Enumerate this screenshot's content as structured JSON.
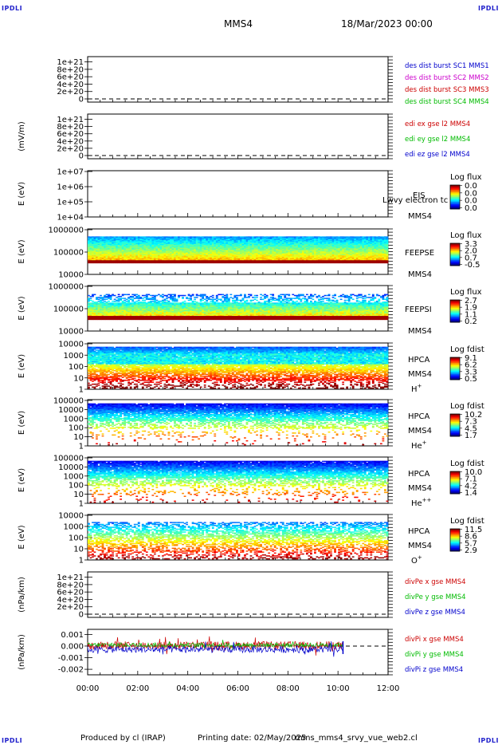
{
  "header": {
    "title": "MMS4",
    "date": "18/Mar/2023 00:00",
    "corner_label": "IPDLI"
  },
  "footer": {
    "produced": "Produced by cl (IRAP)",
    "printing": "Printing date: 02/May/2025",
    "script": "mms_mms4_srvy_vue_web2.cl"
  },
  "x_axis": {
    "ticks": [
      "00:00",
      "02:00",
      "04:00",
      "06:00",
      "08:00",
      "10:00",
      "12:00"
    ],
    "hours_range": [
      0,
      12
    ]
  },
  "chart_data": [
    {
      "id": "des",
      "type": "line",
      "ylabel": "",
      "yticks": [
        "0",
        "2e+20",
        "4e+20",
        "6e+20",
        "8e+20",
        "1e+21"
      ],
      "ylim": [
        0,
        1.1e+21
      ],
      "dashed_zero": true,
      "legend": [
        {
          "text": "des dist burst SC1 MMS1",
          "color": "#0000cc"
        },
        {
          "text": "des dist burst SC2 MMS2",
          "color": "#cc00cc"
        },
        {
          "text": "des dist burst SC3 MMS3",
          "color": "#cc0000"
        },
        {
          "text": "des dist burst SC4 MMS4",
          "color": "#00bb00"
        }
      ]
    },
    {
      "id": "edi",
      "type": "line",
      "ylabel": "(mV/m)",
      "yticks": [
        "0",
        "2e+20",
        "4e+20",
        "6e+20",
        "8e+20",
        "1e+21"
      ],
      "ylim": [
        0,
        1.1e+21
      ],
      "dashed_zero": true,
      "legend": [
        {
          "text": "edi ex gse l2 MMS4",
          "color": "#cc0000"
        },
        {
          "text": "edi ey gse l2 MMS4",
          "color": "#00bb00"
        },
        {
          "text": "edi ez gse l2 MMS4",
          "color": "#0000cc"
        }
      ]
    },
    {
      "id": "eis",
      "type": "heatmap",
      "ylabel": "E (eV)",
      "yscale": "log",
      "yticks": [
        "1e+04",
        "1e+05",
        "1e+06",
        "1e+07"
      ],
      "instrument": [
        "EIS",
        "MMS4"
      ],
      "overlay": "Lwvy electron tc",
      "colorbar": {
        "title": "Log flux",
        "ticks": [
          "0.0",
          "0.0",
          "0.0",
          "0.0"
        ]
      }
    },
    {
      "id": "feepse",
      "type": "heatmap",
      "ylabel": "E (eV)",
      "yscale": "log",
      "yticks": [
        "10000",
        "100000",
        "1000000"
      ],
      "instrument": [
        "FEEPSE",
        "MMS4"
      ],
      "colorbar": {
        "title": "Log flux",
        "ticks": [
          "3.3",
          "2.0",
          "0.7",
          "-0.5"
        ]
      }
    },
    {
      "id": "feepsi",
      "type": "heatmap",
      "ylabel": "E (eV)",
      "yscale": "log",
      "yticks": [
        "10000",
        "100000",
        "1000000"
      ],
      "instrument": [
        "FEEPSI",
        "MMS4"
      ],
      "colorbar": {
        "title": "Log flux",
        "ticks": [
          "2.7",
          "1.9",
          "1.1",
          "0.2"
        ]
      }
    },
    {
      "id": "hpca_h",
      "type": "heatmap",
      "ylabel": "E (eV)",
      "yscale": "log",
      "yticks": [
        "1",
        "10",
        "100",
        "1000",
        "10000"
      ],
      "instrument": [
        "HPCA",
        "MMS4"
      ],
      "species": "H",
      "species_sup": "+",
      "colorbar": {
        "title": "Log fdist",
        "ticks": [
          "9.1",
          "6.2",
          "3.3",
          "0.5"
        ]
      }
    },
    {
      "id": "hpca_he",
      "type": "heatmap",
      "ylabel": "E (eV)",
      "yscale": "log",
      "yticks": [
        "1",
        "10",
        "100",
        "1000",
        "10000",
        "100000"
      ],
      "instrument": [
        "HPCA",
        "MMS4"
      ],
      "species": "He",
      "species_sup": "+",
      "colorbar": {
        "title": "Log fdist",
        "ticks": [
          "10.2",
          "7.3",
          "4.5",
          "1.7"
        ]
      }
    },
    {
      "id": "hpca_hepp",
      "type": "heatmap",
      "ylabel": "E (eV)",
      "yscale": "log",
      "yticks": [
        "1",
        "10",
        "100",
        "1000",
        "10000",
        "100000"
      ],
      "instrument": [
        "HPCA",
        "MMS4"
      ],
      "species": "He",
      "species_sup": "++",
      "colorbar": {
        "title": "Log fdist",
        "ticks": [
          "10.0",
          "7.1",
          "4.2",
          "1.4"
        ]
      }
    },
    {
      "id": "hpca_o",
      "type": "heatmap",
      "ylabel": "E (eV)",
      "yscale": "log",
      "yticks": [
        "1",
        "10",
        "100",
        "1000",
        "10000"
      ],
      "instrument": [
        "HPCA",
        "MMS4"
      ],
      "species": "O",
      "species_sup": "+",
      "colorbar": {
        "title": "Log fdist",
        "ticks": [
          "11.5",
          "8.6",
          "5.7",
          "2.9"
        ]
      }
    },
    {
      "id": "divpe",
      "type": "line",
      "ylabel": "(nPa/km)",
      "yticks": [
        "0",
        "2e+20",
        "4e+20",
        "6e+20",
        "8e+20",
        "1e+21"
      ],
      "ylim": [
        0,
        1.1e+21
      ],
      "dashed_zero": true,
      "legend": [
        {
          "text": "divPe x gse MMS4",
          "color": "#cc0000"
        },
        {
          "text": "divPe y gse MMS4",
          "color": "#00bb00"
        },
        {
          "text": "divPe z gse MMS4",
          "color": "#0000cc"
        }
      ]
    },
    {
      "id": "divpi",
      "type": "line",
      "ylabel": "(nPa/km)",
      "yticks": [
        "-0.002",
        "-0.001",
        "0.000",
        "0.001"
      ],
      "ylim": [
        -0.0022,
        0.0013
      ],
      "dashed_zero": true,
      "data_end_hour": 10.2,
      "legend": [
        {
          "text": "divPi x gse MMS4",
          "color": "#cc0000"
        },
        {
          "text": "divPi y gse MMS4",
          "color": "#00bb00"
        },
        {
          "text": "divPi z gse MMS4",
          "color": "#0000cc"
        }
      ]
    }
  ]
}
